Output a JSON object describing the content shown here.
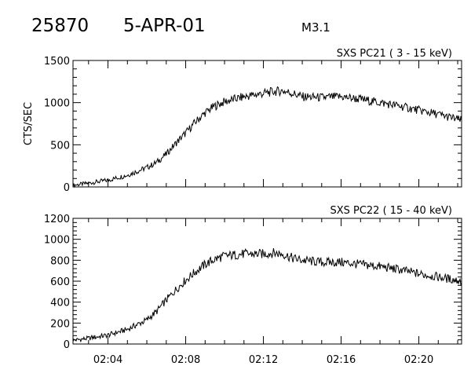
{
  "header": {
    "event_id": "25870",
    "date": "5-APR-01",
    "flare_class": "M3.1"
  },
  "chart_data": [
    {
      "type": "line",
      "title": "SXS PC21  (  3 - 15 keV)",
      "ylabel": "CTS/SEC",
      "xlabel": "",
      "xlim": [
        "02:02:12",
        "02:22:12"
      ],
      "ylim": [
        0,
        1500
      ],
      "yticks": [
        0,
        500,
        1000,
        1500
      ],
      "xticks": [
        "02:04",
        "02:08",
        "02:12",
        "02:16",
        "02:20"
      ],
      "grid": false,
      "series": [
        {
          "x": [
            "02:02:12",
            "02:03:00",
            "02:04:00",
            "02:05:00",
            "02:06:00",
            "02:06:30",
            "02:07:00",
            "02:07:30",
            "02:08:00",
            "02:08:30",
            "02:09:00",
            "02:09:30",
            "02:10:00",
            "02:10:30",
            "02:11:00",
            "02:11:30",
            "02:12:00",
            "02:12:30",
            "02:13:00",
            "02:13:30",
            "02:14:00",
            "02:15:00",
            "02:16:00",
            "02:17:00",
            "02:18:00",
            "02:19:00",
            "02:20:00",
            "02:21:00",
            "02:22:12"
          ],
          "values": [
            20,
            45,
            80,
            140,
            230,
            290,
            390,
            520,
            640,
            770,
            880,
            960,
            1010,
            1040,
            1070,
            1090,
            1110,
            1130,
            1140,
            1110,
            1070,
            1060,
            1070,
            1040,
            1000,
            960,
            910,
            860,
            790
          ]
        }
      ]
    },
    {
      "type": "line",
      "title": "SXS PC22   ( 15 - 40 keV)",
      "ylabel": "",
      "xlabel": "",
      "xlim": [
        "02:02:12",
        "02:22:12"
      ],
      "ylim": [
        0,
        1200
      ],
      "yticks": [
        0,
        200,
        400,
        600,
        800,
        1000,
        1200
      ],
      "xticks": [
        "02:04",
        "02:08",
        "02:12",
        "02:16",
        "02:20"
      ],
      "grid": false,
      "series": [
        {
          "x": [
            "02:02:12",
            "02:03:00",
            "02:04:00",
            "02:05:00",
            "02:06:00",
            "02:06:30",
            "02:07:00",
            "02:07:30",
            "02:08:00",
            "02:08:30",
            "02:09:00",
            "02:09:30",
            "02:10:00",
            "02:10:30",
            "02:11:00",
            "02:11:30",
            "02:12:00",
            "02:12:30",
            "02:13:00",
            "02:13:30",
            "02:14:00",
            "02:15:00",
            "02:16:00",
            "02:17:00",
            "02:18:00",
            "02:19:00",
            "02:20:00",
            "02:21:00",
            "02:22:12"
          ],
          "values": [
            35,
            55,
            85,
            140,
            230,
            310,
            420,
            520,
            610,
            690,
            760,
            810,
            840,
            850,
            860,
            860,
            860,
            870,
            860,
            820,
            800,
            780,
            780,
            760,
            740,
            710,
            670,
            640,
            600
          ]
        }
      ]
    }
  ]
}
